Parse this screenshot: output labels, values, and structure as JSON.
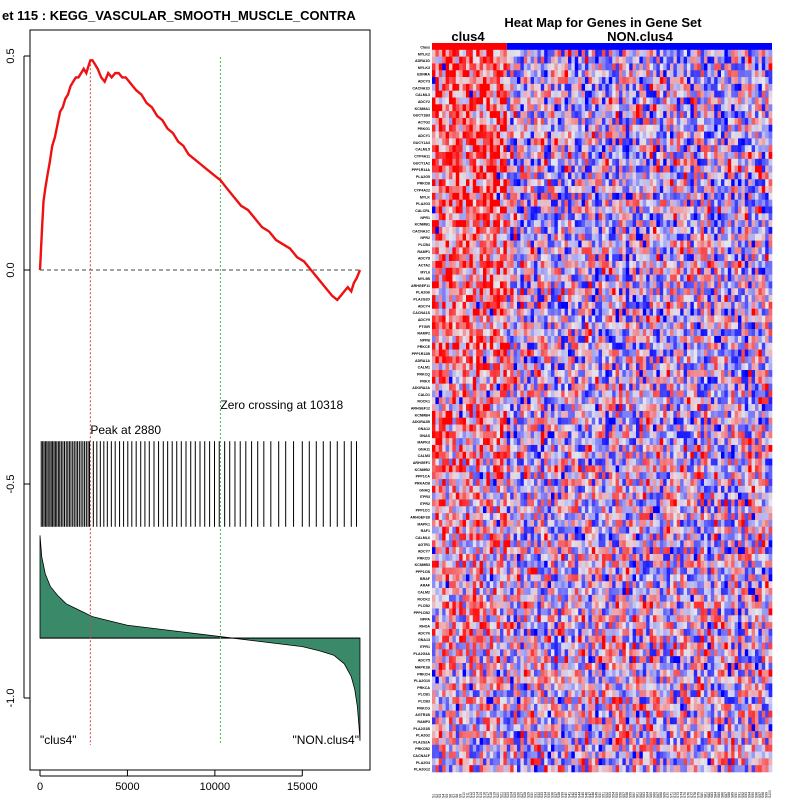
{
  "chart_data": [
    {
      "type": "line",
      "title": "et  115 : KEGG_VASCULAR_SMOOTH_MUSCLE_CONTRA",
      "xlim": [
        0,
        18300
      ],
      "ylim": [
        -1.15,
        0.52
      ],
      "x_ticks": [
        0,
        5000,
        10000,
        15000
      ],
      "x_tick_labels": [
        "0",
        "5000",
        "10000",
        "15000"
      ],
      "y_ticks": [
        0.5,
        0.0,
        -0.5,
        -1.0
      ],
      "y_tick_labels": [
        "0.5",
        "0.0",
        "-0.5",
        "-1.0"
      ],
      "enrichment_curve": {
        "color": "#ee1111",
        "x": [
          0,
          60,
          120,
          200,
          300,
          420,
          550,
          700,
          850,
          1000,
          1150,
          1300,
          1450,
          1600,
          1750,
          1900,
          2050,
          2200,
          2350,
          2500,
          2650,
          2800,
          2880,
          3000,
          3150,
          3300,
          3500,
          3700,
          3900,
          4100,
          4300,
          4500,
          4700,
          4900,
          5100,
          5300,
          5500,
          5800,
          6100,
          6400,
          6700,
          7000,
          7300,
          7600,
          7900,
          8200,
          8500,
          8800,
          9100,
          9400,
          9700,
          10000,
          10318,
          10700,
          11100,
          11500,
          11900,
          12300,
          12700,
          13100,
          13500,
          13900,
          14300,
          14700,
          15100,
          15500,
          15900,
          16300,
          16700,
          17000,
          17200,
          17400,
          17600,
          17800,
          17950,
          18100,
          18200,
          18300
        ],
        "y": [
          0.0,
          0.05,
          0.1,
          0.16,
          0.19,
          0.22,
          0.25,
          0.29,
          0.31,
          0.34,
          0.37,
          0.38,
          0.4,
          0.41,
          0.43,
          0.44,
          0.45,
          0.45,
          0.46,
          0.47,
          0.46,
          0.48,
          0.49,
          0.49,
          0.48,
          0.47,
          0.45,
          0.44,
          0.46,
          0.45,
          0.46,
          0.46,
          0.45,
          0.45,
          0.44,
          0.43,
          0.42,
          0.41,
          0.39,
          0.38,
          0.36,
          0.35,
          0.33,
          0.32,
          0.3,
          0.29,
          0.27,
          0.26,
          0.25,
          0.24,
          0.23,
          0.22,
          0.21,
          0.19,
          0.17,
          0.15,
          0.14,
          0.12,
          0.1,
          0.09,
          0.07,
          0.06,
          0.05,
          0.03,
          0.02,
          0.0,
          -0.02,
          -0.04,
          -0.06,
          -0.07,
          -0.06,
          -0.05,
          -0.04,
          -0.05,
          -0.03,
          -0.02,
          -0.01,
          0.0
        ]
      },
      "peak": {
        "x": 2880,
        "label": "Peak at 2880",
        "color": "#cc4444"
      },
      "zero_crossing": {
        "x": 10318,
        "label": "Zero crossing at 10318",
        "color": "#44bb44"
      },
      "hit_band": {
        "y_top": -0.4,
        "y_bottom": -0.6
      },
      "hits": [
        70,
        150,
        230,
        310,
        390,
        470,
        560,
        640,
        720,
        800,
        880,
        960,
        1050,
        1130,
        1220,
        1310,
        1400,
        1500,
        1590,
        1680,
        1770,
        1870,
        1960,
        2060,
        2150,
        2250,
        2350,
        2450,
        2550,
        2650,
        2750,
        2830,
        3050,
        3250,
        3450,
        3650,
        3850,
        4080,
        4300,
        4550,
        4780,
        5020,
        5250,
        5500,
        5760,
        6000,
        6250,
        6520,
        6780,
        7050,
        7300,
        7560,
        7820,
        8080,
        8350,
        8620,
        8880,
        9150,
        9420,
        9700,
        9980,
        10250,
        10560,
        10850,
        11150,
        11450,
        11770,
        12100,
        12450,
        12800,
        13200,
        13650,
        14050,
        14500,
        15000,
        15400,
        15800,
        16200,
        16600,
        17000,
        17400,
        17800,
        18100
      ],
      "ranked_metric": {
        "fill": "#3a8a6a",
        "baseline_y": -0.86,
        "x": [
          0,
          100,
          300,
          600,
          1000,
          1500,
          2000,
          2500,
          3000,
          4000,
          5000,
          6000,
          7000,
          8000,
          9000,
          10000,
          11000,
          12000,
          13000,
          14000,
          15000,
          16000,
          16800,
          17400,
          17800,
          18000,
          18150,
          18250,
          18300
        ],
        "y": [
          -0.62,
          -0.67,
          -0.71,
          -0.74,
          -0.76,
          -0.78,
          -0.79,
          -0.8,
          -0.81,
          -0.82,
          -0.83,
          -0.835,
          -0.84,
          -0.845,
          -0.85,
          -0.855,
          -0.86,
          -0.865,
          -0.87,
          -0.875,
          -0.88,
          -0.89,
          -0.9,
          -0.92,
          -0.95,
          -0.98,
          -1.02,
          -1.07,
          -1.1
        ]
      },
      "class_labels": {
        "left": "\"clus4\"",
        "right": "\"NON.clus4\""
      }
    },
    {
      "type": "heatmap",
      "title": "Heat Map for Genes in Gene Set",
      "group_labels": {
        "left": "clus4",
        "right": "NON.clus4"
      },
      "group_colors": {
        "left": "#ff0000",
        "right": "#0000ff"
      },
      "low_color": "#0000ff",
      "mid_color": "#e6e6ee",
      "high_color": "#ff0000",
      "n_samples": 100,
      "n_clus4": 22,
      "rows": [
        "Class",
        "MYLK2",
        "ADRA1D",
        "MYLK3",
        "EDNRA",
        "ADCY3",
        "CACNA1D",
        "CALML3",
        "ADCY2",
        "KCNMA1",
        "GUCY1B3",
        "ACTG2",
        "PRKG1",
        "ADCY1",
        "GUCY1A3",
        "CALML5",
        "CYP4A11",
        "GUCY1A2",
        "PPP1R14A",
        "PLA2G5",
        "PRKCB",
        "CYP4A22",
        "MYLK",
        "PLA2G3",
        "CALCRL",
        "NPR1",
        "KCNMB1",
        "CACNA1C",
        "NPR2",
        "PLCB4",
        "RAMP1",
        "ADCY8",
        "ACTA2",
        "MYL6",
        "MYL9B",
        "ARHGEF11",
        "PLA2G6",
        "PLA2G2D",
        "ADCY4",
        "CACNA1S",
        "ADCY9",
        "PTGIR",
        "RAMP2",
        "NPPB",
        "PRKCE",
        "PPP1R12B",
        "ADRA1A",
        "CALM1",
        "PRKCQ",
        "PRKX",
        "ADORA2A",
        "CALD1",
        "ROCK1",
        "ARHGEF12",
        "KCNMB4",
        "ADORA2B",
        "GNA12",
        "GNAS",
        "MAPK3",
        "GNA11",
        "CALM3",
        "ARHGEF1",
        "KCNMB2",
        "PPP1CA",
        "PRKACB",
        "GNAQ",
        "ITPR3",
        "ITPR2",
        "PPP1CC",
        "ARHGEF1B",
        "MAPK1",
        "RAF1",
        "CALML6",
        "AGTR1",
        "ADCY7",
        "PRKCD",
        "KCNMB3",
        "PPP1CB",
        "BRAF",
        "ARAF",
        "CALM2",
        "ROCK2",
        "PLCB2",
        "PPP1CB2",
        "NPPA",
        "RHOA",
        "ADCY6",
        "GNA13",
        "ITPR1",
        "PLA2G4A",
        "ADCY5",
        "MAPK1B",
        "PRKCH",
        "PLA2G10",
        "PRKCA",
        "PLCB1",
        "PLCB3",
        "PRKCG",
        "AGTR1B",
        "RAMP3",
        "PLA2G1B",
        "PLA2G2",
        "PLA2G2A",
        "PRKCB2",
        "CACNA1F",
        "PLA2G4",
        "PLA2G12"
      ]
    }
  ]
}
